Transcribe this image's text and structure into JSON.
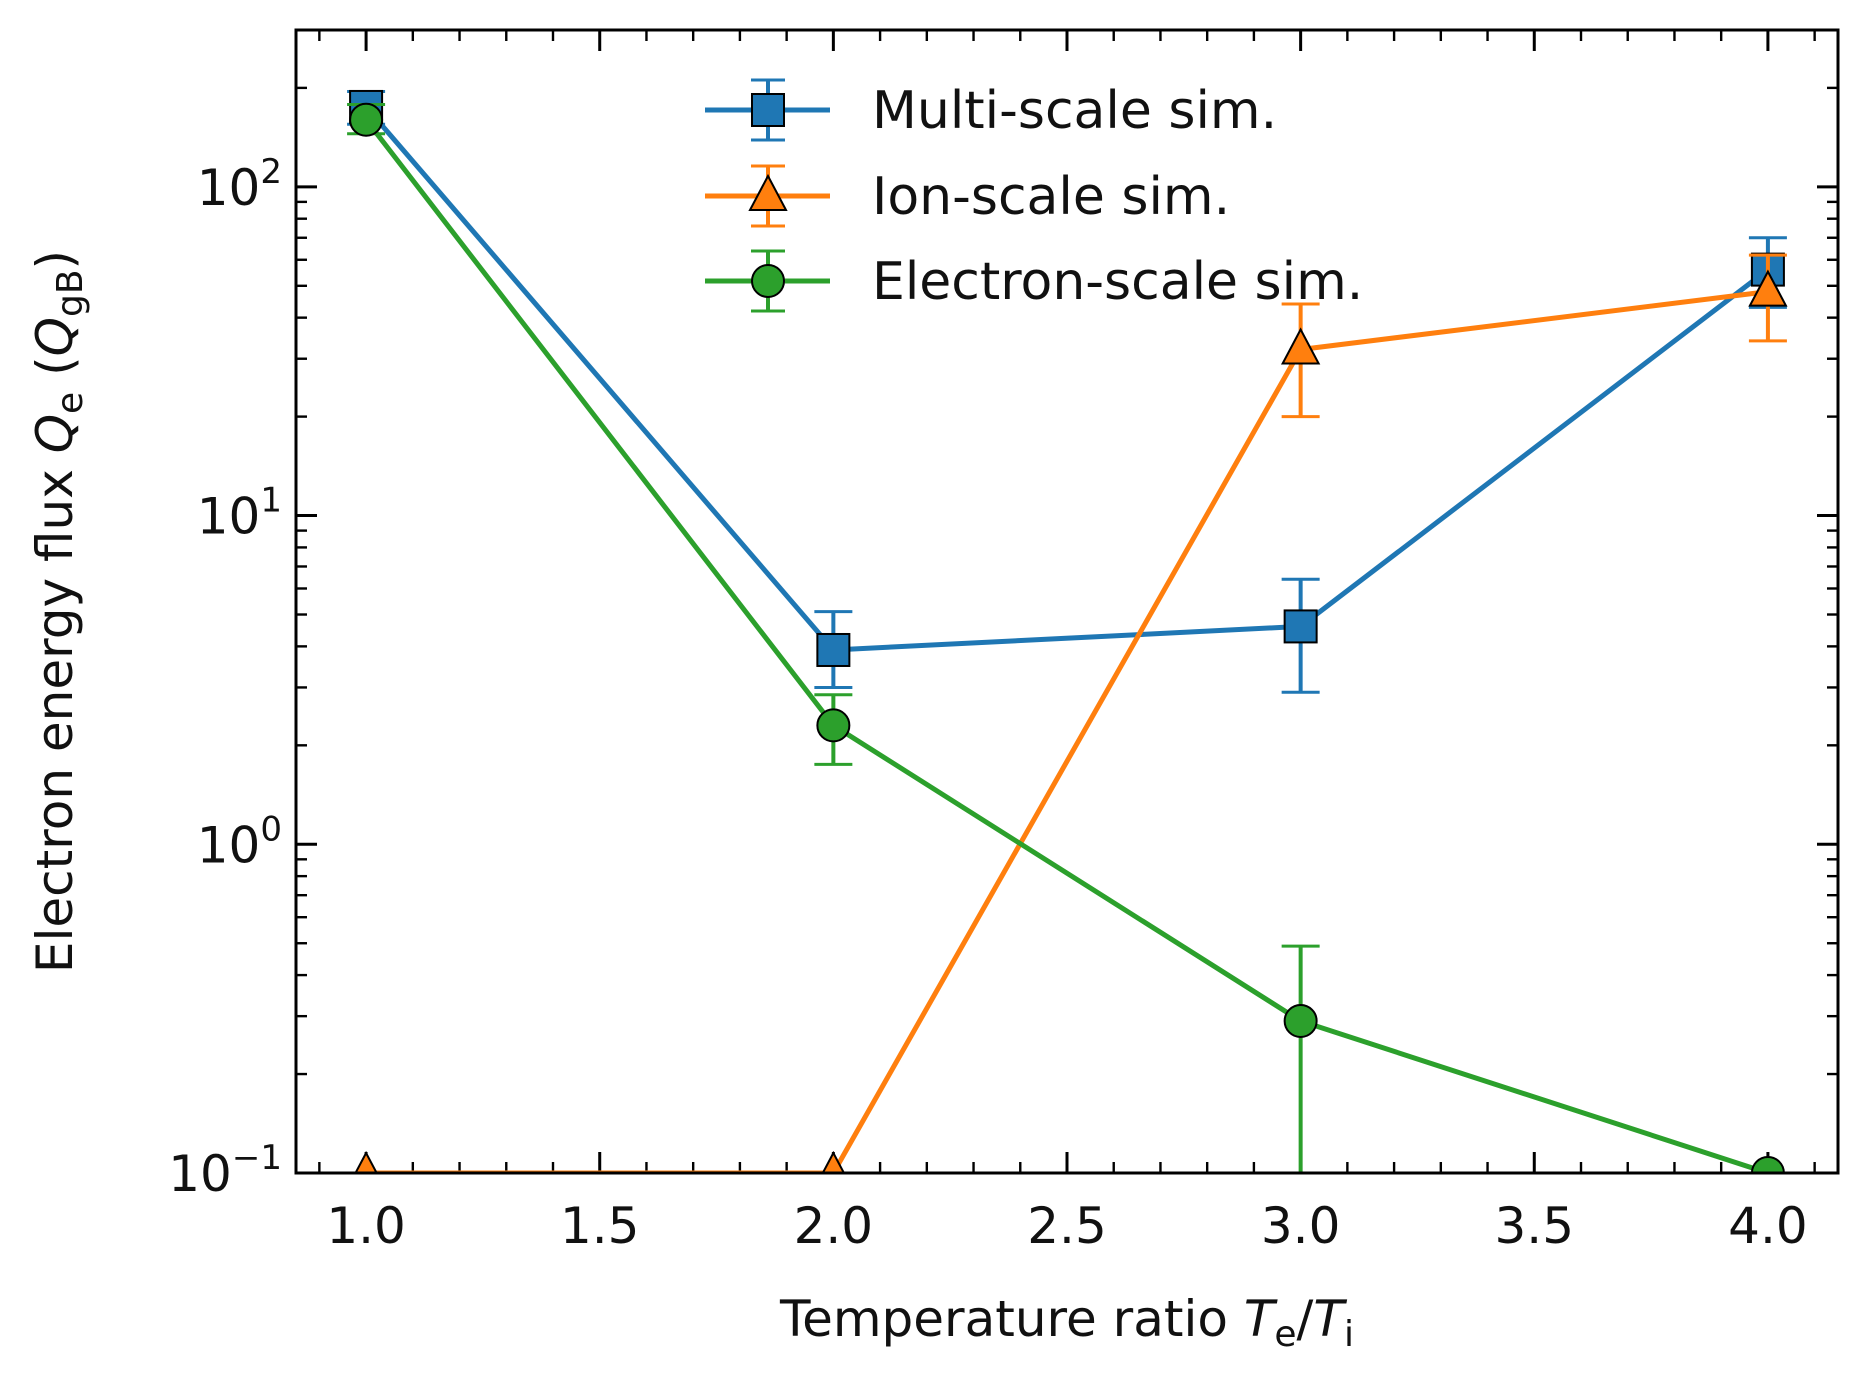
{
  "chart_data": {
    "type": "line",
    "x_axis": {
      "label_parts": [
        "Temperature ratio ",
        "T",
        "e",
        "/",
        "T",
        "i"
      ],
      "range": [
        0.85,
        4.15
      ],
      "ticks": [
        1.0,
        1.5,
        2.0,
        2.5,
        3.0,
        3.5,
        4.0
      ],
      "tick_labels": [
        "1.0",
        "1.5",
        "2.0",
        "2.5",
        "3.0",
        "3.5",
        "4.0"
      ]
    },
    "y_axis": {
      "label_parts": [
        "Electron energy flux ",
        "Q",
        "e",
        " (",
        "Q",
        "gB",
        ")"
      ],
      "scale": "log",
      "range": [
        0.1,
        300
      ],
      "ticks": [
        0.1,
        1,
        10,
        100
      ],
      "tick_labels": [
        {
          "base": "10",
          "exp": "−1"
        },
        {
          "base": "10",
          "exp": "0"
        },
        {
          "base": "10",
          "exp": "1"
        },
        {
          "base": "10",
          "exp": "2"
        }
      ]
    },
    "grid": false,
    "legend_position": "top-center",
    "series": [
      {
        "name": "Multi-scale sim.",
        "color": "#1f77b4",
        "marker": "square",
        "x": [
          1.0,
          2.0,
          3.0,
          4.0
        ],
        "y": [
          175,
          3.9,
          4.6,
          56
        ],
        "y_err_low": [
          155,
          3.0,
          2.9,
          43
        ],
        "y_err_high": [
          195,
          5.1,
          6.4,
          70
        ]
      },
      {
        "name": "Ion-scale sim.",
        "color": "#ff7f0e",
        "marker": "triangle",
        "x": [
          1.0,
          2.0,
          3.0,
          4.0
        ],
        "y": [
          0.1,
          0.1,
          32,
          48
        ],
        "y_err_low": [
          null,
          null,
          20,
          34
        ],
        "y_err_high": [
          null,
          null,
          44,
          62
        ]
      },
      {
        "name": "Electron-scale sim.",
        "color": "#2ca02c",
        "marker": "circle",
        "x": [
          1.0,
          2.0,
          3.0,
          4.0
        ],
        "y": [
          160,
          2.3,
          0.29,
          0.1
        ],
        "y_err_low": [
          145,
          1.75,
          0.1,
          null
        ],
        "y_err_high": [
          178,
          2.85,
          0.49,
          null
        ]
      }
    ]
  }
}
